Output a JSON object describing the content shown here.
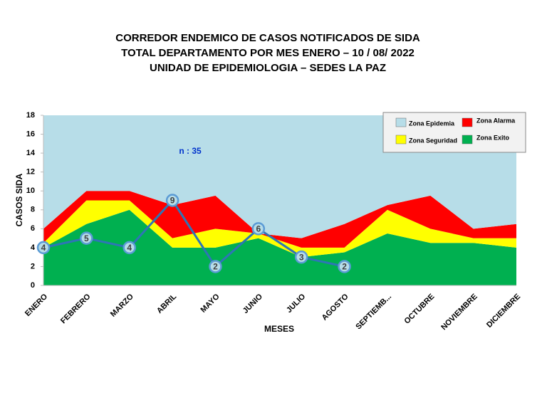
{
  "chart_data": {
    "type": "area",
    "title": [
      "CORREDOR  ENDEMICO  DE CASOS NOTIFICADOS  DE SIDA",
      "TOTAL DEPARTAMENTO  POR MES ENERO  – 10 / 08/ 2022",
      "UNIDAD  DE EPIDEMIOLOGIA  – SEDES LA PAZ"
    ],
    "x_label": "MESES",
    "y_label": "CASOS SIDA",
    "annotation": "n : 35",
    "categories": [
      "ENERO",
      "FEBRERO",
      "MARZO",
      "ABRIL",
      "MAYO",
      "JUNIO",
      "JULIO",
      "AGOSTO",
      "SEPTIEMB...",
      "OCTUBRE",
      "NOVIEMBRE",
      "DICIEMBRE"
    ],
    "stacked": true,
    "series": [
      {
        "name": "Zona Exito",
        "color": "#00b050",
        "values": [
          4,
          6.5,
          8,
          4,
          4,
          5,
          3,
          3.5,
          5.5,
          4.5,
          4.5,
          4
        ]
      },
      {
        "name": "Zona Seguridad",
        "color": "#ffff00",
        "values": [
          0.5,
          2.5,
          1,
          1,
          2,
          0.5,
          1,
          0.5,
          2.5,
          1.5,
          0.5,
          1
        ]
      },
      {
        "name": "Zona Alarma",
        "color": "#ff0000",
        "values": [
          1.5,
          1,
          1,
          3.5,
          3.5,
          0,
          1,
          2.5,
          0.5,
          3.5,
          1,
          1.5
        ]
      },
      {
        "name": "Zona Epidemia",
        "color": "#b7dde8",
        "values": [
          12,
          8,
          8,
          9.5,
          8.5,
          12.5,
          13,
          11.5,
          9.5,
          8.5,
          12,
          11.5
        ]
      }
    ],
    "line": {
      "color": "#2e75b6",
      "values": [
        4,
        5,
        4,
        9,
        2,
        6,
        3,
        2,
        null,
        null,
        null,
        null
      ]
    },
    "legend_order": [
      3,
      2,
      1,
      0
    ],
    "legend_position": "upper right",
    "ylim": [
      0,
      18
    ],
    "yticks": [
      0,
      2,
      4,
      6,
      8,
      10,
      12,
      14,
      16,
      18
    ],
    "grid": false
  }
}
